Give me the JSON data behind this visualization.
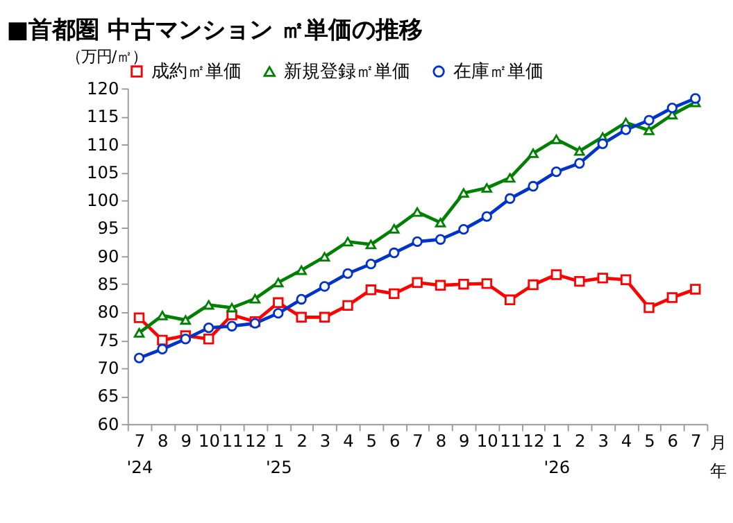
{
  "chart_data": {
    "type": "line",
    "title": "■首都圏 中古マンション ㎡単価の推移",
    "ylabel": "（万円/㎡）",
    "xlabel": "月年",
    "categories": [
      "7\n'24",
      "8",
      "9",
      "10",
      "11",
      "12",
      "1\n'25",
      "2",
      "3",
      "4",
      "5",
      "6",
      "7",
      "8",
      "9",
      "10",
      "11",
      "12",
      "1\n'26",
      "2",
      "3",
      "4",
      "5",
      "6",
      "7"
    ],
    "series": [
      {
        "name": "成約㎡単価",
        "color": "#ff0000",
        "marker": "square",
        "values": [
          79.0,
          75.0,
          75.8,
          75.2,
          79.5,
          78.3,
          81.7,
          79.1,
          79.1,
          81.2,
          84.0,
          83.3,
          85.3,
          84.8,
          85.0,
          85.1,
          82.2,
          84.9,
          86.7,
          85.5,
          86.1,
          85.8,
          80.8,
          82.6,
          84.1
        ]
      },
      {
        "name": "新規登録㎡単価",
        "color": "#008000",
        "marker": "triangle",
        "values": [
          76.3,
          79.4,
          78.6,
          81.3,
          80.8,
          82.4,
          85.3,
          87.5,
          89.9,
          92.6,
          92.1,
          94.9,
          97.9,
          96.0,
          101.3,
          102.2,
          104.0,
          108.4,
          110.9,
          108.8,
          111.3,
          113.9,
          112.5,
          115.3,
          117.5
        ]
      },
      {
        "name": "在庫㎡単価",
        "color": "#0033cc",
        "marker": "circle",
        "values": [
          71.8,
          73.4,
          75.2,
          77.2,
          77.5,
          78.0,
          79.8,
          82.3,
          84.6,
          86.9,
          88.6,
          90.6,
          92.6,
          93.0,
          94.8,
          97.1,
          100.3,
          102.5,
          105.1,
          106.6,
          110.1,
          112.6,
          114.3,
          116.5,
          118.2
        ]
      }
    ],
    "ylim": [
      60,
      120
    ],
    "yticks": [
      60,
      65,
      70,
      75,
      80,
      85,
      90,
      95,
      100,
      105,
      110,
      115,
      120
    ],
    "grid": false,
    "legend": "top",
    "line_style": "solid"
  }
}
